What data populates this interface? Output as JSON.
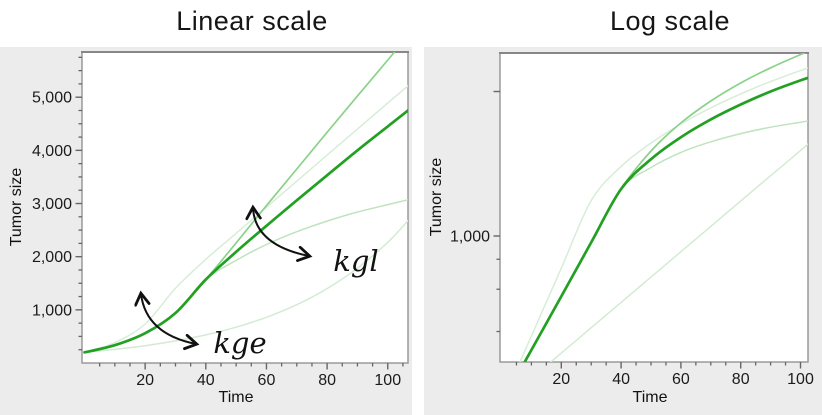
{
  "panels": {
    "linear": {
      "title": "Linear scale",
      "xlabel": "Time",
      "ylabel": "Tumor size"
    },
    "log": {
      "title": "Log scale",
      "xlabel": "Time",
      "ylabel": "Tumor size"
    }
  },
  "annotations": {
    "kge": "kge",
    "kgl": "kgl"
  },
  "colors": {
    "panel_bg": "#ececec",
    "plot_bg": "#ffffff",
    "plot_border": "#9a9a9a",
    "tick": "#666666",
    "curve_main": "#22a022",
    "curve_kgl_high": "#8ad28a",
    "curve_kge_high": "#d8edd8",
    "curve_kgl_low": "#bfe3bf",
    "curve_kge_low": "#d3ebd3",
    "arrow": "#111111"
  },
  "chart_data": [
    {
      "type": "line",
      "title": "Linear scale",
      "xlabel": "Time",
      "ylabel": "Tumor size",
      "yscale": "linear",
      "grid": false,
      "legend": "none",
      "xlim": [
        0,
        107
      ],
      "ylim": [
        0,
        5850
      ],
      "x": [
        0,
        10,
        20,
        30,
        40,
        50,
        60,
        70,
        80,
        90,
        100,
        107
      ],
      "xticks": [
        20,
        40,
        60,
        80,
        100
      ],
      "xtick_labels": [
        "20",
        "40",
        "60",
        "80",
        "100"
      ],
      "xminor_step": 5,
      "yticks": [
        {
          "value": 1000,
          "label": "1,000"
        },
        {
          "value": 2000,
          "label": "2,000"
        },
        {
          "value": 3000,
          "label": "3,000"
        },
        {
          "value": 4000,
          "label": "4,000"
        },
        {
          "value": 5000,
          "label": "5,000"
        }
      ],
      "yminor_step": 250,
      "series": [
        {
          "name": "base",
          "role": "bold main curve",
          "values": [
            200,
            335,
            560,
            940,
            1570,
            2090,
            2580,
            3060,
            3530,
            4000,
            4450,
            4765
          ]
        },
        {
          "name": "kgl_high",
          "role": "higher linear growth rate",
          "values": [
            200,
            335,
            560,
            940,
            1570,
            2260,
            2960,
            3650,
            4340,
            5020,
            5700,
            6175
          ]
        },
        {
          "name": "kgl_low",
          "role": "lower linear growth rate",
          "values": [
            200,
            335,
            560,
            940,
            1570,
            1930,
            2230,
            2470,
            2670,
            2840,
            2980,
            3075
          ]
        },
        {
          "name": "kge_high",
          "role": "higher exponential rate",
          "values": [
            200,
            383,
            734,
            1405,
            1950,
            2440,
            2930,
            3420,
            3910,
            4400,
            4890,
            5230
          ]
        },
        {
          "name": "kge_low",
          "role": "lower exponential rate",
          "values": [
            200,
            255,
            325,
            415,
            529,
            674,
            860,
            1097,
            1399,
            1784,
            2270,
            2700
          ]
        }
      ],
      "annotations": [
        {
          "text": "kge",
          "meaning": "exponential growth rate parameter"
        },
        {
          "text": "kgl",
          "meaning": "linear growth rate parameter"
        }
      ]
    },
    {
      "type": "line",
      "title": "Log scale",
      "xlabel": "Time",
      "ylabel": "Tumor size",
      "yscale": "log",
      "grid": false,
      "legend": "none",
      "xlim": [
        0,
        102
      ],
      "ylim": [
        300,
        6200
      ],
      "x": [
        0,
        10,
        20,
        30,
        40,
        50,
        60,
        70,
        80,
        90,
        100,
        107
      ],
      "xticks": [
        20,
        40,
        60,
        80,
        100
      ],
      "xtick_labels": [
        "20",
        "40",
        "60",
        "80",
        "100"
      ],
      "xminor_step": 5,
      "yticks": [
        {
          "value": 4000,
          "label": ""
        },
        {
          "value": 1000,
          "label": "1,000"
        }
      ],
      "yminors": [
        800,
        600,
        400
      ],
      "series": [
        {
          "name": "base",
          "role": "bold main curve",
          "values": [
            200,
            335,
            560,
            940,
            1570,
            2090,
            2580,
            3060,
            3530,
            4000,
            4450,
            4765
          ]
        },
        {
          "name": "kgl_high",
          "role": "higher linear growth rate",
          "values": [
            200,
            335,
            560,
            940,
            1570,
            2260,
            2960,
            3650,
            4340,
            5020,
            5700,
            6175
          ]
        },
        {
          "name": "kgl_low",
          "role": "lower linear growth rate",
          "values": [
            200,
            335,
            560,
            940,
            1570,
            1930,
            2230,
            2470,
            2670,
            2840,
            2980,
            3075
          ]
        },
        {
          "name": "kge_high",
          "role": "higher exponential rate",
          "values": [
            200,
            383,
            734,
            1405,
            1950,
            2440,
            2930,
            3420,
            3910,
            4400,
            4890,
            5230
          ]
        },
        {
          "name": "kge_low",
          "role": "lower exponential rate",
          "values": [
            200,
            255,
            325,
            415,
            529,
            674,
            860,
            1097,
            1399,
            1784,
            2270,
            2700
          ]
        }
      ]
    }
  ]
}
